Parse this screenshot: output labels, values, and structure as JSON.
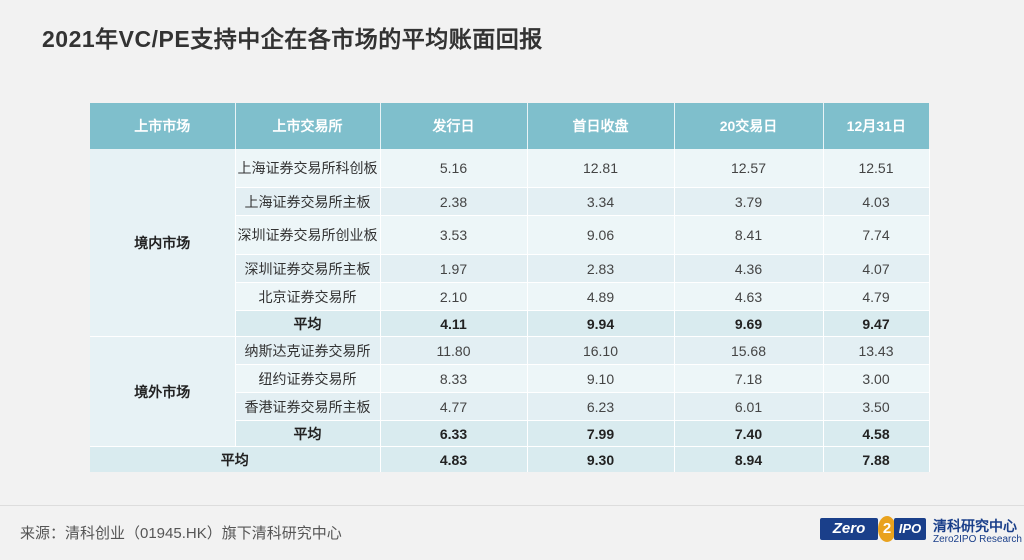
{
  "title": "2021年VC/PE支持中企在各市场的平均账面回报",
  "table": {
    "headers": [
      "上市市场",
      "上市交易所",
      "发行日",
      "首日收盘",
      "20交易日",
      "12月31日"
    ],
    "domestic": {
      "market": "境内市场",
      "rows": [
        {
          "exchange": "上海证券交易所科创板",
          "issue": "5.16",
          "first_close": "12.81",
          "day20": "12.57",
          "dec31": "12.51"
        },
        {
          "exchange": "上海证券交易所主板",
          "issue": "2.38",
          "first_close": "3.34",
          "day20": "3.79",
          "dec31": "4.03"
        },
        {
          "exchange": "深圳证券交易所创业板",
          "issue": "3.53",
          "first_close": "9.06",
          "day20": "8.41",
          "dec31": "7.74"
        },
        {
          "exchange": "深圳证券交易所主板",
          "issue": "1.97",
          "first_close": "2.83",
          "day20": "4.36",
          "dec31": "4.07"
        },
        {
          "exchange": "北京证券交易所",
          "issue": "2.10",
          "first_close": "4.89",
          "day20": "4.63",
          "dec31": "4.79"
        }
      ],
      "avg": {
        "label": "平均",
        "issue": "4.11",
        "first_close": "9.94",
        "day20": "9.69",
        "dec31": "9.47"
      }
    },
    "overseas": {
      "market": "境外市场",
      "rows": [
        {
          "exchange": "纳斯达克证券交易所",
          "issue": "11.80",
          "first_close": "16.10",
          "day20": "15.68",
          "dec31": "13.43"
        },
        {
          "exchange": "纽约证券交易所",
          "issue": "8.33",
          "first_close": "9.10",
          "day20": "7.18",
          "dec31": "3.00"
        },
        {
          "exchange": "香港证券交易所主板",
          "issue": "4.77",
          "first_close": "6.23",
          "day20": "6.01",
          "dec31": "3.50"
        }
      ],
      "avg": {
        "label": "平均",
        "issue": "6.33",
        "first_close": "7.99",
        "day20": "7.40",
        "dec31": "4.58"
      }
    },
    "total": {
      "label": "平均",
      "issue": "4.83",
      "first_close": "9.30",
      "day20": "8.94",
      "dec31": "7.88"
    }
  },
  "footer": {
    "source": "来源：清科创业（01945.HK）旗下清科研究中心",
    "logo_zero": "Zero",
    "logo_two": "2",
    "logo_ipo": "IPO",
    "logo_cn": "清科研究中心",
    "logo_en": "Zero2IPO Research"
  },
  "colors": {
    "header": "#7fbfcc",
    "row_light": "#edf6f8",
    "row_dark": "#e3eff3",
    "avg_row": "#d9ebef",
    "logo_blue": "#1a3f8a",
    "logo_orange": "#e9a21e"
  }
}
